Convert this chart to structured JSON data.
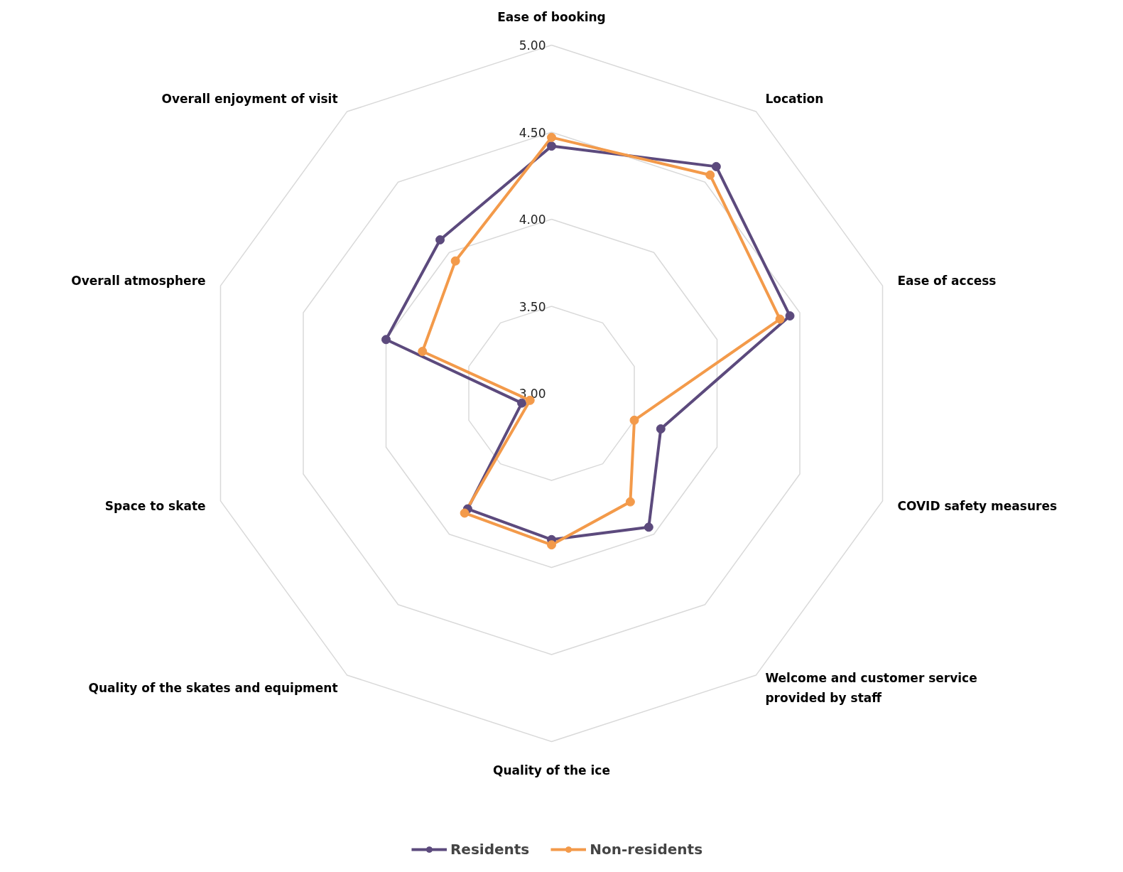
{
  "chart_data": {
    "type": "radar",
    "categories": [
      "Ease of booking",
      "Location",
      "Ease of access",
      "COVID safety measures",
      "Welcome and customer service\nprovided by staff",
      "Quality of the ice",
      "Quality of the skates and equipment",
      "Space to skate",
      "Overall atmosphere",
      "Overall enjoyment of visit"
    ],
    "ylim": [
      3,
      5
    ],
    "yticks": [
      {
        "value": 3,
        "label": "3.00"
      },
      {
        "value": 3.5,
        "label": "3.50"
      },
      {
        "value": 4,
        "label": "4.00"
      },
      {
        "value": 4.5,
        "label": "4.50"
      },
      {
        "value": 5,
        "label": "5.00"
      }
    ],
    "series": [
      {
        "name": "Residents",
        "color": "#5c4a7d",
        "values": [
          4.42,
          4.61,
          4.44,
          3.66,
          3.95,
          3.84,
          3.82,
          3.18,
          4.0,
          4.09
        ]
      },
      {
        "name": "Non-residents",
        "color": "#f39a4a",
        "values": [
          4.47,
          4.55,
          4.38,
          3.5,
          3.77,
          3.87,
          3.85,
          3.13,
          3.78,
          3.94
        ]
      }
    ],
    "marker": "circle",
    "legend": "bottom",
    "grid": true
  }
}
